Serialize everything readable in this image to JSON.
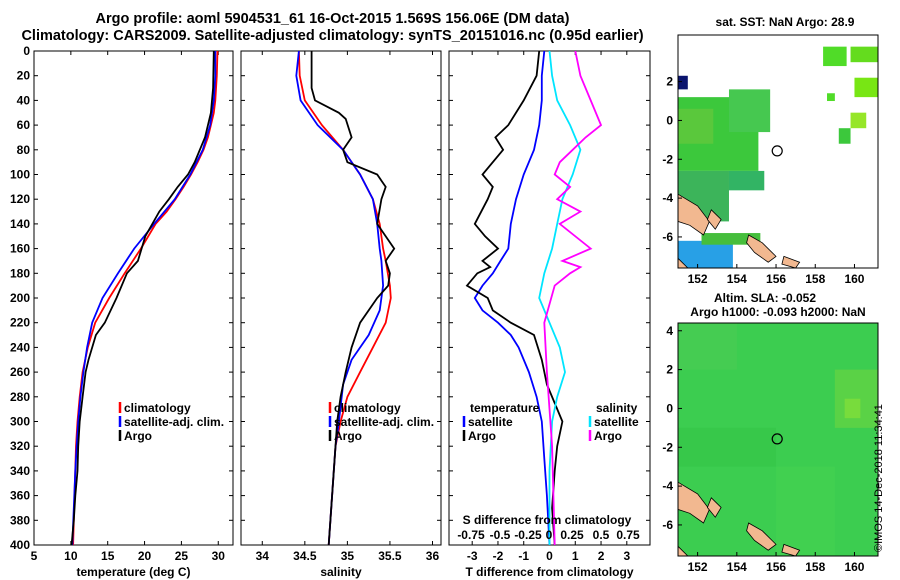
{
  "header": {
    "line1": "Argo profile: aoml 5904531_61 16-Oct-2015 1.569S 156.06E (DM data)",
    "line2": "Climatology: CARS2009. Satellite-adjusted climatology: synTS_20151016.nc (0.95d earlier)"
  },
  "colors": {
    "climatology": "#ff0000",
    "satellite": "#0000ff",
    "argo": "#000000",
    "sal_satellite": "#00e5ff",
    "sal_argo": "#ff00ff",
    "land": "#f2b890"
  },
  "chart_data": [
    {
      "type": "line",
      "id": "temperature",
      "xlabel": "temperature (deg C)",
      "xlim": [
        5,
        32
      ],
      "xticks": [
        "5",
        "10",
        "15",
        "20",
        "25",
        "30"
      ],
      "xtick_values": [
        5,
        10,
        15,
        20,
        25,
        30
      ],
      "ylim": [
        400,
        0
      ],
      "yticks": [
        "0",
        "20",
        "40",
        "60",
        "80",
        "100",
        "120",
        "140",
        "160",
        "180",
        "200",
        "220",
        "240",
        "260",
        "280",
        "300",
        "320",
        "340",
        "360",
        "380",
        "400"
      ],
      "ytick_values": [
        0,
        20,
        40,
        60,
        80,
        100,
        120,
        140,
        160,
        180,
        200,
        220,
        240,
        260,
        280,
        300,
        320,
        340,
        360,
        380,
        400
      ],
      "legend": [
        "climatology",
        "satellite-adj. clim.",
        "Argo"
      ],
      "series": [
        {
          "name": "climatology",
          "color": "#ff0000",
          "x": [
            29.9,
            29.8,
            29.6,
            29.4,
            29.0,
            28.6,
            28.0,
            27.2,
            26.3,
            25.3,
            24.2,
            23.0,
            21.5,
            19.5,
            17.3,
            15.2,
            13.3,
            12.3,
            11.6,
            11.2,
            10.9,
            10.7,
            10.5,
            10.3
          ],
          "y": [
            0,
            20,
            40,
            50,
            60,
            70,
            80,
            90,
            100,
            110,
            120,
            130,
            140,
            160,
            180,
            200,
            220,
            240,
            260,
            280,
            300,
            320,
            360,
            400
          ]
        },
        {
          "name": "satellite-adj. clim.",
          "color": "#0000ff",
          "x": [
            29.6,
            29.6,
            29.4,
            28.9,
            27.9,
            26.2,
            24.1,
            21.3,
            18.6,
            16.4,
            14.3,
            12.9,
            12.2,
            11.7,
            11.3,
            11.0,
            10.8,
            10.6,
            10.4,
            10.2
          ],
          "y": [
            0,
            20,
            40,
            60,
            80,
            100,
            120,
            140,
            160,
            180,
            200,
            220,
            240,
            260,
            280,
            300,
            320,
            340,
            370,
            400
          ]
        },
        {
          "name": "Argo",
          "color": "#000000",
          "x": [
            29.4,
            29.3,
            29.0,
            28.2,
            26.8,
            25.9,
            24.5,
            23.3,
            22.0,
            20.1,
            19.1,
            17.6,
            16.2,
            14.6,
            13.4,
            12.4,
            12.0,
            11.6,
            11.2,
            11.0,
            10.9,
            10.6,
            10.4,
            10.1
          ],
          "y": [
            0,
            30,
            50,
            70,
            90,
            100,
            110,
            120,
            130,
            150,
            170,
            180,
            200,
            220,
            230,
            250,
            260,
            280,
            300,
            320,
            340,
            360,
            380,
            400
          ]
        }
      ]
    },
    {
      "type": "line",
      "id": "salinity",
      "xlabel": "salinity",
      "xlim": [
        33.75,
        36.1
      ],
      "xticks": [
        "34",
        "34.5",
        "35",
        "35.5",
        "36"
      ],
      "xtick_values": [
        34,
        34.5,
        35,
        35.5,
        36
      ],
      "ylim": [
        400,
        0
      ],
      "legend": [
        "climatology",
        "satellite-adj. clim.",
        "Argo"
      ],
      "series": [
        {
          "name": "climatology",
          "color": "#ff0000",
          "x": [
            34.43,
            34.44,
            34.5,
            34.7,
            34.95,
            35.15,
            35.3,
            35.38,
            35.42,
            35.45,
            35.5,
            35.51,
            35.45,
            35.3,
            35.15,
            35.0,
            34.92,
            34.86,
            34.82,
            34.78
          ],
          "y": [
            0,
            20,
            40,
            60,
            80,
            100,
            120,
            140,
            160,
            170,
            190,
            200,
            220,
            240,
            260,
            280,
            300,
            320,
            360,
            400
          ]
        },
        {
          "name": "satellite-adj. clim.",
          "color": "#0000ff",
          "x": [
            34.43,
            34.4,
            34.45,
            34.65,
            34.95,
            35.15,
            35.3,
            35.35,
            35.38,
            35.4,
            35.42,
            35.38,
            35.25,
            35.05,
            34.95,
            34.9,
            34.86,
            34.82,
            34.78
          ],
          "y": [
            0,
            20,
            40,
            60,
            80,
            100,
            120,
            140,
            160,
            170,
            190,
            210,
            230,
            250,
            270,
            300,
            320,
            360,
            400
          ]
        },
        {
          "name": "Argo",
          "color": "#000000",
          "x": [
            34.58,
            34.58,
            34.62,
            34.9,
            34.98,
            35.05,
            34.95,
            35.0,
            35.35,
            35.45,
            35.4,
            35.35,
            35.55,
            35.45,
            35.5,
            35.48,
            35.35,
            35.15,
            35.05,
            34.98,
            34.92,
            34.88,
            34.84,
            34.78
          ],
          "y": [
            0,
            30,
            40,
            50,
            55,
            70,
            80,
            90,
            100,
            110,
            120,
            140,
            160,
            170,
            180,
            190,
            200,
            220,
            240,
            260,
            280,
            300,
            340,
            400
          ]
        }
      ]
    },
    {
      "type": "line",
      "id": "difference",
      "xlabel": "T difference from climatology",
      "xlabel_top": "S difference from climatology",
      "xlim": [
        -3.9,
        3.9
      ],
      "xticks": [
        "-3",
        "-2",
        "-1",
        "0",
        "1",
        "2",
        "3"
      ],
      "xtick_values": [
        -3,
        -2,
        -1,
        0,
        1,
        2,
        3
      ],
      "xticks_top": [
        "-0.75",
        "-0.5",
        "-0.25",
        "0",
        "0.25",
        "0.5",
        "0.75"
      ],
      "legend_left_title": "temperature",
      "legend_right_title": "salinity",
      "legend": [
        "satellite",
        "Argo",
        "satellite",
        "Argo"
      ],
      "series": [
        {
          "name": "T satellite",
          "color": "#0000ff",
          "x": [
            -0.2,
            -0.3,
            -0.3,
            -0.4,
            -0.6,
            -1.0,
            -1.3,
            -1.5,
            -1.6,
            -1.9,
            -2.2,
            -2.6,
            -2.9,
            -2.6,
            -2.0,
            -1.5,
            -1.2,
            -0.8,
            -0.5,
            -0.3,
            -0.2,
            -0.1,
            0
          ],
          "y": [
            0,
            20,
            40,
            60,
            80,
            100,
            120,
            140,
            160,
            170,
            180,
            190,
            200,
            210,
            220,
            230,
            240,
            260,
            280,
            300,
            330,
            360,
            400
          ]
        },
        {
          "name": "T Argo",
          "color": "#000000",
          "x": [
            -0.4,
            -0.5,
            -1.0,
            -1.6,
            -2.1,
            -1.8,
            -2.6,
            -2.2,
            -2.4,
            -2.9,
            -2.5,
            -2.0,
            -2.6,
            -2.3,
            -2.8,
            -3.2,
            -2.4,
            -2.2,
            -1.5,
            -0.6,
            -0.3,
            -0.1,
            0.5,
            0.3,
            0.2,
            0.1,
            0.2
          ],
          "y": [
            0,
            20,
            40,
            60,
            70,
            80,
            100,
            110,
            120,
            140,
            150,
            160,
            170,
            175,
            180,
            190,
            200,
            210,
            220,
            230,
            250,
            270,
            300,
            320,
            340,
            370,
            400
          ]
        },
        {
          "name": "S satellite",
          "color": "#00e5ff",
          "x": [
            0,
            0.1,
            0.3,
            0.8,
            1.2,
            0.9,
            0.5,
            0.3,
            0.1,
            -0.2,
            -0.4,
            0,
            0.4,
            0.6,
            0.3,
            0.1,
            0,
            0
          ],
          "y": [
            0,
            20,
            40,
            60,
            80,
            100,
            120,
            140,
            160,
            180,
            200,
            220,
            240,
            260,
            280,
            300,
            340,
            400
          ]
        },
        {
          "name": "S Argo",
          "color": "#ff00ff",
          "x": [
            1.0,
            1.2,
            1.6,
            2.0,
            1.4,
            0.9,
            0.4,
            0.2,
            0.8,
            0.3,
            1.2,
            0.4,
            1.6,
            0.5,
            1.2,
            0.8,
            0.2,
            -0.2,
            -0.1,
            0.1,
            0.2
          ],
          "y": [
            0,
            20,
            40,
            60,
            70,
            80,
            90,
            100,
            110,
            120,
            130,
            140,
            160,
            170,
            175,
            180,
            190,
            220,
            260,
            320,
            400
          ]
        }
      ]
    },
    {
      "type": "heatmap",
      "id": "sst-map",
      "title": "sat. SST: NaN Argo: 28.9",
      "xticks": [
        "152",
        "154",
        "156",
        "158",
        "160"
      ],
      "xtick_values": [
        152,
        154,
        156,
        158,
        160
      ],
      "yticks": [
        "2",
        "0",
        "-2",
        "-4",
        "-6"
      ],
      "ytick_values": [
        2,
        0,
        -2,
        -4,
        -6
      ],
      "xlim": [
        151,
        161.2
      ],
      "ylim": [
        -7.6,
        4.4
      ],
      "marker": {
        "lon": 156.06,
        "lat": -1.569
      }
    },
    {
      "type": "heatmap",
      "id": "sla-map",
      "title_line1": "Altim. SLA: -0.052",
      "title_line2": "Argo h1000: -0.093 h2000: NaN",
      "xticks": [
        "152",
        "154",
        "156",
        "158",
        "160"
      ],
      "xtick_values": [
        152,
        154,
        156,
        158,
        160
      ],
      "yticks": [
        "4",
        "2",
        "0",
        "-2",
        "-4",
        "-6"
      ],
      "ytick_values": [
        4,
        2,
        0,
        -2,
        -4,
        -6
      ],
      "xlim": [
        151,
        161.2
      ],
      "ylim": [
        -7.6,
        4.4
      ],
      "marker": {
        "lon": 156.06,
        "lat": -1.569
      }
    }
  ],
  "footer": {
    "credit": "©IMOS 14-Dec-2018 11:34:41"
  }
}
